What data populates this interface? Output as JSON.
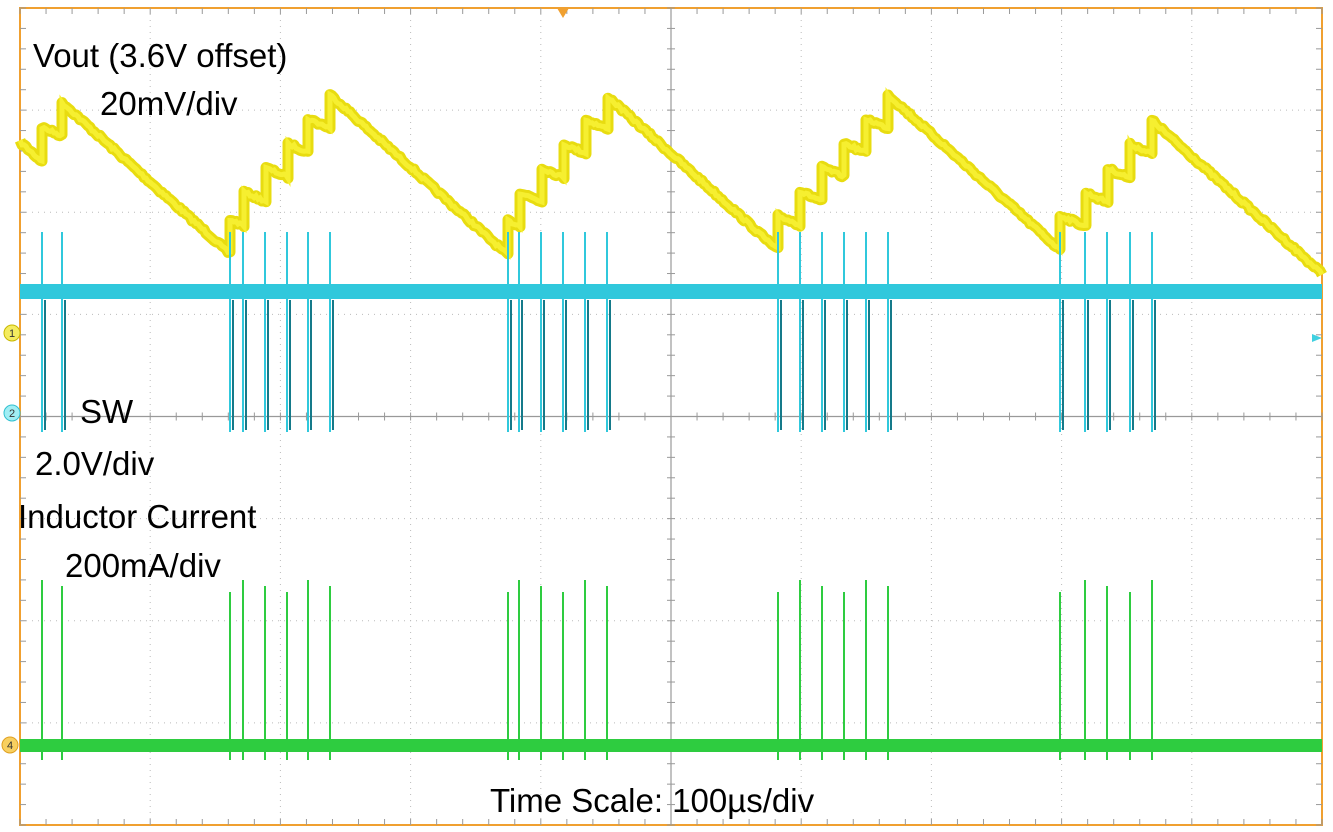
{
  "traces": [
    {
      "name": "Vout (3.6V offset)",
      "scale": "20mV/div"
    },
    {
      "name": "SW",
      "scale": "2.0V/div"
    },
    {
      "name": "Inductor Current",
      "scale": "200mA/div"
    }
  ],
  "time_scale": "Time Scale: 100µs/div",
  "channel_markers": [
    "1",
    "2",
    "4"
  ]
}
